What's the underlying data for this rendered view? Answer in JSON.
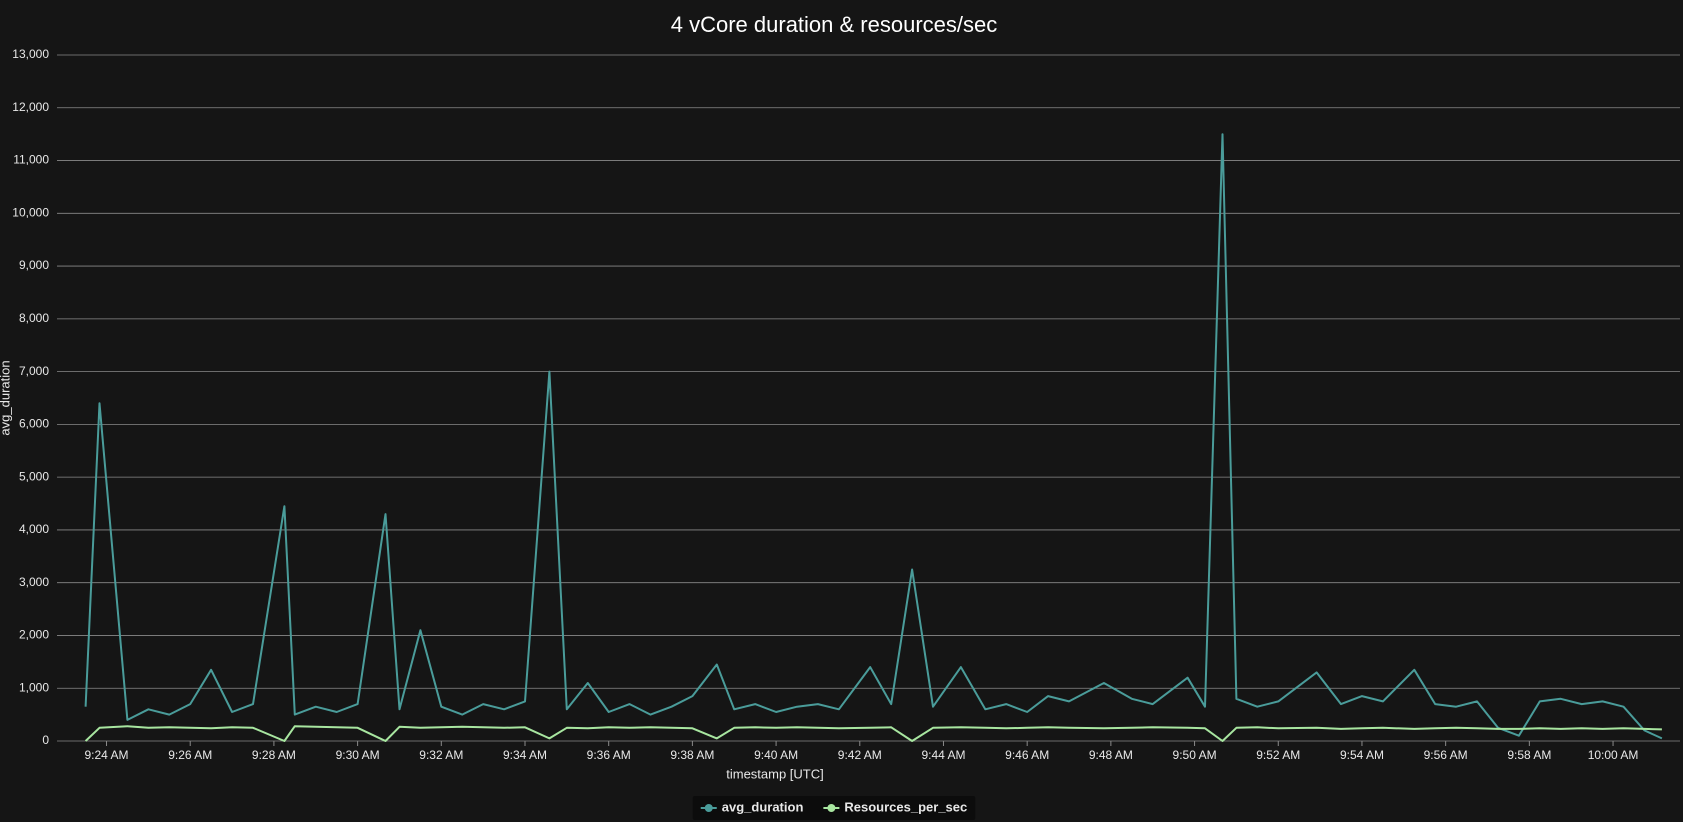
{
  "chart_data": {
    "type": "line",
    "title": "4 vCore duration & resources/sec",
    "x_label": "timestamp [UTC]",
    "y_label": "avg_duration",
    "grid": true,
    "legend": "bottom",
    "xlim": [
      "09:22:49",
      "10:01:36"
    ],
    "xticks": [
      {
        "value": "09:24",
        "label": "9:24 AM"
      },
      {
        "value": "09:26",
        "label": "9:26 AM"
      },
      {
        "value": "09:28",
        "label": "9:28 AM"
      },
      {
        "value": "09:30",
        "label": "9:30 AM"
      },
      {
        "value": "09:32",
        "label": "9:32 AM"
      },
      {
        "value": "09:34",
        "label": "9:34 AM"
      },
      {
        "value": "09:36",
        "label": "9:36 AM"
      },
      {
        "value": "09:38",
        "label": "9:38 AM"
      },
      {
        "value": "09:40",
        "label": "9:40 AM"
      },
      {
        "value": "09:42",
        "label": "9:42 AM"
      },
      {
        "value": "09:44",
        "label": "9:44 AM"
      },
      {
        "value": "09:46",
        "label": "9:46 AM"
      },
      {
        "value": "09:48",
        "label": "9:48 AM"
      },
      {
        "value": "09:50",
        "label": "9:50 AM"
      },
      {
        "value": "09:52",
        "label": "9:52 AM"
      },
      {
        "value": "09:54",
        "label": "9:54 AM"
      },
      {
        "value": "09:56",
        "label": "9:56 AM"
      },
      {
        "value": "09:58",
        "label": "9:58 AM"
      },
      {
        "value": "10:00",
        "label": "10:00 AM"
      }
    ],
    "ylim": [
      0,
      13000
    ],
    "yticks": [
      0,
      {
        "value": 1000,
        "label": "1,000"
      },
      {
        "value": 2000,
        "label": "2,000"
      },
      {
        "value": 3000,
        "label": "3,000"
      },
      {
        "value": 4000,
        "label": "4,000"
      },
      {
        "value": 5000,
        "label": "5,000"
      },
      {
        "value": 6000,
        "label": "6,000"
      },
      {
        "value": 7000,
        "label": "7,000"
      },
      {
        "value": 8000,
        "label": "8,000"
      },
      {
        "value": 9000,
        "label": "9,000"
      },
      {
        "value": 10000,
        "label": "10,000"
      },
      {
        "value": 11000,
        "label": "11,000"
      },
      {
        "value": 12000,
        "label": "12,000"
      },
      {
        "value": 13000,
        "label": "13,000"
      }
    ],
    "x": [
      "09:23:30",
      "09:23:50",
      "09:24:30",
      "09:25:00",
      "09:25:30",
      "09:26:00",
      "09:26:30",
      "09:27:00",
      "09:27:30",
      "09:28:15",
      "09:28:30",
      "09:29:00",
      "09:29:30",
      "09:30:00",
      "09:30:40",
      "09:31:00",
      "09:31:30",
      "09:32:00",
      "09:32:30",
      "09:33:00",
      "09:33:30",
      "09:34:00",
      "09:34:35",
      "09:35:00",
      "09:35:30",
      "09:36:00",
      "09:36:30",
      "09:37:00",
      "09:37:30",
      "09:38:00",
      "09:38:35",
      "09:39:00",
      "09:39:30",
      "09:40:00",
      "09:40:30",
      "09:41:00",
      "09:41:30",
      "09:42:15",
      "09:42:45",
      "09:43:15",
      "09:43:45",
      "09:44:25",
      "09:45:00",
      "09:45:30",
      "09:46:00",
      "09:46:30",
      "09:47:00",
      "09:47:50",
      "09:48:30",
      "09:49:00",
      "09:49:50",
      "09:50:15",
      "09:50:40",
      "09:51:00",
      "09:51:30",
      "09:52:00",
      "09:52:55",
      "09:53:30",
      "09:54:00",
      "09:54:30",
      "09:55:15",
      "09:55:45",
      "09:56:15",
      "09:56:45",
      "09:57:15",
      "09:57:45",
      "09:58:15",
      "09:58:45",
      "09:59:15",
      "09:59:45",
      "10:00:15",
      "10:00:45",
      "10:01:10"
    ],
    "series": [
      {
        "name": "avg_duration",
        "color": "#4a9c9a",
        "values": [
          650,
          6400,
          400,
          600,
          500,
          700,
          1350,
          550,
          700,
          4450,
          500,
          650,
          550,
          700,
          4300,
          600,
          2100,
          650,
          500,
          700,
          600,
          750,
          7000,
          600,
          1100,
          550,
          700,
          500,
          650,
          850,
          1450,
          600,
          700,
          550,
          650,
          700,
          600,
          1400,
          700,
          3250,
          650,
          1400,
          600,
          700,
          550,
          850,
          750,
          1100,
          800,
          700,
          1200,
          650,
          11500,
          800,
          650,
          750,
          1300,
          700,
          850,
          750,
          1350,
          700,
          650,
          750,
          250,
          100,
          750,
          800,
          700,
          750,
          650,
          200,
          50
        ]
      },
      {
        "name": "Resources_per_sec",
        "color": "#a8e6a0",
        "values": [
          0,
          250,
          280,
          250,
          260,
          250,
          240,
          260,
          250,
          0,
          280,
          270,
          260,
          250,
          0,
          270,
          250,
          260,
          270,
          260,
          250,
          260,
          50,
          250,
          240,
          260,
          250,
          260,
          250,
          240,
          50,
          250,
          260,
          250,
          260,
          250,
          240,
          250,
          260,
          0,
          250,
          260,
          250,
          240,
          250,
          260,
          250,
          240,
          250,
          260,
          250,
          240,
          0,
          250,
          260,
          240,
          250,
          230,
          240,
          250,
          230,
          240,
          250,
          240,
          230,
          230,
          240,
          230,
          240,
          230,
          240,
          230,
          220
        ]
      }
    ]
  }
}
